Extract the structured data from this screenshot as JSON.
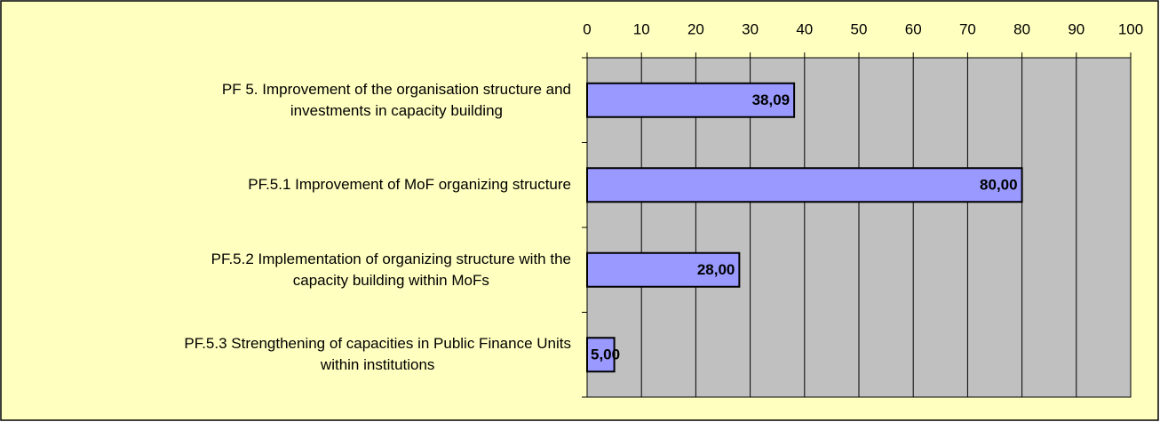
{
  "chart_data": {
    "type": "bar",
    "orientation": "horizontal",
    "categories": [
      "PF 5. Improvement of the organisation structure and\ninvestments in capacity building",
      "PF.5.1 Improvement of MoF organizing structure",
      "PF.5.2 Implementation of organizing structure with the\ncapacity building within MoFs",
      "PF.5.3 Strengthening of capacities in Public Finance Units\nwithin institutions"
    ],
    "values": [
      38.09,
      80,
      28,
      5
    ],
    "value_labels": [
      "38,09",
      "80,00",
      "28,00",
      "5,00"
    ],
    "color": "#9999ff",
    "xlim": [
      0,
      100
    ],
    "xticks": [
      0,
      10,
      20,
      30,
      40,
      50,
      60,
      70,
      80,
      90,
      100
    ],
    "grid": true
  }
}
